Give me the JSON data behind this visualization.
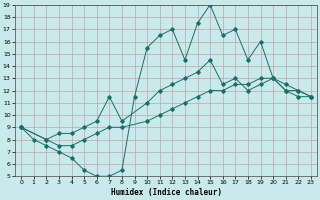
{
  "xlabel": "Humidex (Indice chaleur)",
  "bg_color": "#c8eaea",
  "grid_color": "#c8a0aa",
  "line_color": "#1a7068",
  "xlim": [
    -0.5,
    23.5
  ],
  "ylim": [
    5,
    19
  ],
  "xticks": [
    0,
    1,
    2,
    3,
    4,
    5,
    6,
    7,
    8,
    9,
    10,
    11,
    12,
    13,
    14,
    15,
    16,
    17,
    18,
    19,
    20,
    21,
    22,
    23
  ],
  "yticks": [
    5,
    6,
    7,
    8,
    9,
    10,
    11,
    12,
    13,
    14,
    15,
    16,
    17,
    18,
    19
  ],
  "line1_x": [
    0,
    1,
    2,
    3,
    4,
    5,
    6,
    7,
    8,
    9,
    10,
    11,
    12,
    13,
    14,
    15,
    16,
    17,
    18,
    19,
    20,
    21,
    22,
    23
  ],
  "line1_y": [
    9,
    8,
    7.5,
    7,
    6.5,
    5.5,
    5.0,
    5.0,
    5.5,
    11.5,
    15.5,
    16.5,
    17,
    14.5,
    17.5,
    19.0,
    16.5,
    17.0,
    14.5,
    16.0,
    13,
    12.5,
    12,
    11.5
  ],
  "line2_x": [
    0,
    2,
    3,
    4,
    5,
    6,
    7,
    8,
    10,
    11,
    12,
    13,
    14,
    15,
    16,
    17,
    18,
    19,
    20,
    21,
    22,
    23
  ],
  "line2_y": [
    9,
    8,
    8.5,
    8.5,
    9.0,
    9.5,
    11.5,
    9.5,
    11.0,
    12.0,
    12.5,
    13.0,
    13.5,
    14.5,
    12.5,
    13.0,
    12.0,
    12.5,
    13.0,
    12.0,
    12.0,
    11.5
  ],
  "line3_x": [
    0,
    2,
    3,
    4,
    5,
    6,
    7,
    8,
    10,
    11,
    12,
    13,
    14,
    15,
    16,
    17,
    18,
    19,
    20,
    21,
    22,
    23
  ],
  "line3_y": [
    9,
    8,
    7.5,
    7.5,
    8.0,
    8.5,
    9.0,
    9.0,
    9.5,
    10.0,
    10.5,
    11.0,
    11.5,
    12.0,
    12.0,
    12.5,
    12.5,
    13.0,
    13.0,
    12.0,
    11.5,
    11.5
  ]
}
